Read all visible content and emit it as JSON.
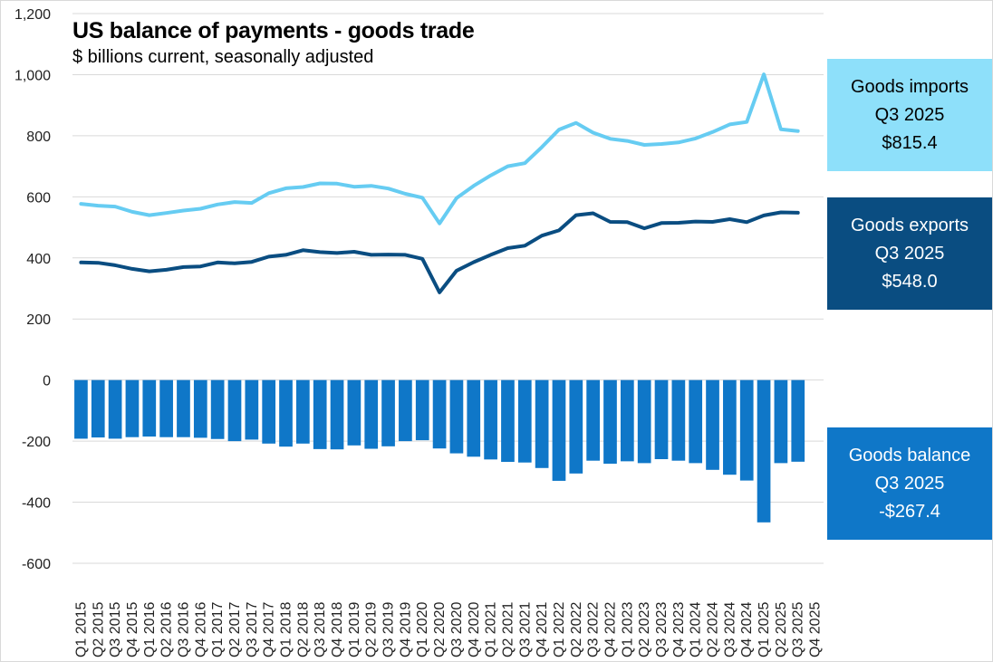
{
  "title": "US balance of payments - goods trade",
  "subtitle": "$ billions current, seasonally adjusted",
  "colors": {
    "imports": "#66ccf2",
    "exports": "#0a4d81",
    "balance": "#0f77c8",
    "grid": "#d9d9d9"
  },
  "callouts": {
    "imports": {
      "label": "Goods imports",
      "period": "Q3 2025",
      "value": "$815.4"
    },
    "exports": {
      "label": "Goods exports",
      "period": "Q3 2025",
      "value": "$548.0"
    },
    "balance": {
      "label": "Goods balance",
      "period": "Q3 2025",
      "value": "-$267.4"
    }
  },
  "chart_data": {
    "type": "bar+line",
    "title": "US balance of payments - goods trade",
    "ylabel": "$ billions current, seasonally adjusted",
    "ylim": [
      -600,
      1200
    ],
    "yticks": [
      -600,
      -400,
      -200,
      0,
      200,
      400,
      600,
      800,
      1000,
      1200
    ],
    "ytick_labels": [
      "-600",
      "-400",
      "-200",
      "0",
      "200",
      "400",
      "600",
      "800",
      "1,000",
      "1,200"
    ],
    "grid": true,
    "categories": [
      "Q1 2015",
      "Q2 2015",
      "Q3 2015",
      "Q4 2015",
      "Q1 2016",
      "Q2 2016",
      "Q3 2016",
      "Q4 2016",
      "Q1 2017",
      "Q2 2017",
      "Q3 2017",
      "Q4 2017",
      "Q1 2018",
      "Q2 2018",
      "Q3 2018",
      "Q4 2018",
      "Q1 2019",
      "Q2 2019",
      "Q3 2019",
      "Q4 2019",
      "Q1 2020",
      "Q2 2020",
      "Q3 2020",
      "Q4 2020",
      "Q1 2021",
      "Q2 2021",
      "Q3 2021",
      "Q4 2021",
      "Q1 2022",
      "Q2 2022",
      "Q3 2022",
      "Q4 2022",
      "Q1 2023",
      "Q2 2023",
      "Q3 2023",
      "Q4 2023",
      "Q1 2024",
      "Q2 2024",
      "Q3 2024",
      "Q4 2024",
      "Q1 2025",
      "Q2 2025",
      "Q3 2025",
      "Q4 2025"
    ],
    "series": [
      {
        "name": "Goods imports",
        "kind": "line",
        "color": "#66ccf2",
        "values": [
          577,
          571,
          568,
          551,
          540,
          547,
          555,
          561,
          575,
          583,
          580,
          612,
          628,
          632,
          644,
          643,
          633,
          636,
          627,
          610,
          597,
          513,
          596,
          636,
          670,
          700,
          710,
          763,
          820,
          842,
          810,
          790,
          783,
          770,
          773,
          778,
          791,
          812,
          837,
          845,
          1001,
          821,
          815.4,
          null
        ]
      },
      {
        "name": "Goods exports",
        "kind": "line",
        "color": "#0a4d81",
        "values": [
          385,
          384,
          376,
          364,
          356,
          361,
          370,
          372,
          385,
          382,
          387,
          404,
          410,
          425,
          419,
          416,
          420,
          410,
          411,
          410,
          397,
          287,
          358,
          386,
          410,
          432,
          440,
          473,
          490,
          540,
          546,
          518,
          517,
          497,
          514,
          515,
          519,
          518,
          527,
          517,
          539,
          549,
          548.0,
          null
        ]
      },
      {
        "name": "Goods balance",
        "kind": "bar",
        "color": "#0f77c8",
        "values": [
          -192,
          -188,
          -192,
          -187,
          -185,
          -187,
          -187,
          -189,
          -193,
          -200,
          -195,
          -208,
          -218,
          -208,
          -226,
          -227,
          -214,
          -225,
          -217,
          -200,
          -197,
          -224,
          -240,
          -251,
          -260,
          -268,
          -270,
          -288,
          -330,
          -306,
          -264,
          -274,
          -266,
          -272,
          -259,
          -264,
          -272,
          -294,
          -310,
          -329,
          -466,
          -272,
          -267.4,
          null
        ]
      }
    ]
  }
}
